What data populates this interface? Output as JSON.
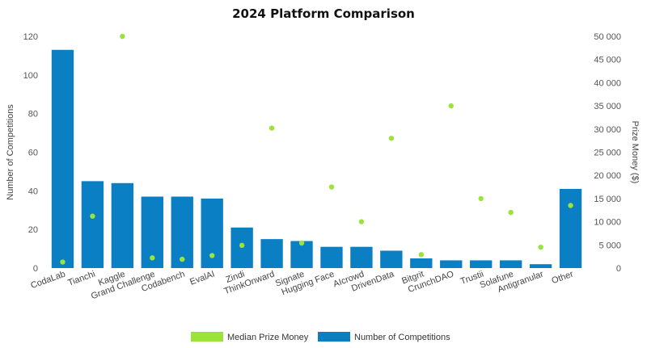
{
  "chart_data": {
    "type": "bar",
    "title": "2024 Platform Comparison",
    "categories": [
      "CodaLab",
      "Tianchi",
      "Kaggle",
      "Grand Challenge",
      "Codabench",
      "EvalAI",
      "Zindi",
      "ThinkOnward",
      "Signate",
      "Hugging Face",
      "AIcrowd",
      "DrivenData",
      "Bitgrit",
      "CrunchDAO",
      "Trustii",
      "Solafune",
      "Antigranular",
      "Other"
    ],
    "series": [
      {
        "name": "Number of Competitions",
        "kind": "bar",
        "axis": "left",
        "color": "#0a7fc4",
        "values": [
          113,
          45,
          44,
          37,
          37,
          36,
          21,
          15,
          14,
          11,
          11,
          9,
          5,
          4,
          4,
          4,
          2,
          41
        ]
      },
      {
        "name": "Median Prize Money",
        "kind": "scatter",
        "axis": "right",
        "color": "#9be33c",
        "values": [
          1300,
          11200,
          50000,
          2200,
          1900,
          2700,
          4900,
          30200,
          5400,
          17500,
          10000,
          28000,
          2900,
          35000,
          15000,
          12000,
          4500,
          13500
        ]
      }
    ],
    "ylabel": "Number of Competitions",
    "y2label": "Prize Money ($)",
    "ylim": [
      0,
      120
    ],
    "y2lim": [
      0,
      50000
    ],
    "yticks": [
      "0",
      "20",
      "40",
      "60",
      "80",
      "100",
      "120"
    ],
    "y2ticks": [
      "0",
      "5 000",
      "10 000",
      "15 000",
      "20 000",
      "25 000",
      "30 000",
      "35 000",
      "40 000",
      "45 000",
      "50 000"
    ],
    "legend": {
      "placement": "bottom-center",
      "items": [
        "Median Prize Money",
        "Number of Competitions"
      ]
    },
    "grid": false
  }
}
